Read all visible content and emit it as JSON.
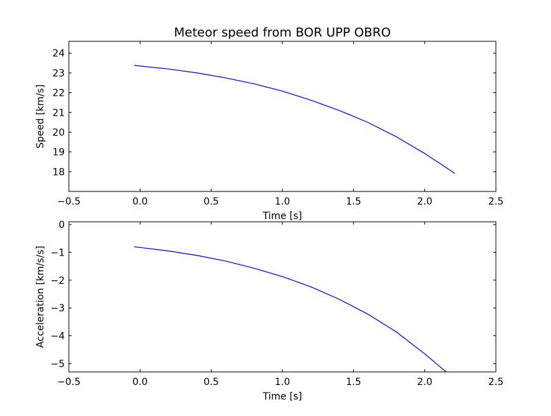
{
  "title": "Meteor speed from  BOR UPP OBRO",
  "chart_data": [
    {
      "type": "line",
      "title": "Meteor speed from  BOR UPP OBRO",
      "xlabel": "Time [s]",
      "ylabel": "Speed [km/s]",
      "xlim": [
        -0.5,
        2.5
      ],
      "ylim": [
        17.0,
        24.6
      ],
      "xticks": [
        -0.5,
        0.0,
        0.5,
        1.0,
        1.5,
        2.0,
        2.5
      ],
      "xtick_labels": [
        "−0.5",
        "0.0",
        "0.5",
        "1.0",
        "1.5",
        "2.0",
        "2.5"
      ],
      "yticks": [
        18,
        19,
        20,
        21,
        22,
        23,
        24
      ],
      "ytick_labels": [
        "18",
        "19",
        "20",
        "21",
        "22",
        "23",
        "24"
      ],
      "grid": false,
      "series": [
        {
          "color": "#0000ff",
          "x": [
            -0.04,
            0.2,
            0.4,
            0.6,
            0.8,
            1.0,
            1.2,
            1.4,
            1.6,
            1.8,
            2.0,
            2.1,
            2.21
          ],
          "y": [
            23.38,
            23.2,
            23.0,
            22.75,
            22.45,
            22.08,
            21.62,
            21.1,
            20.5,
            19.77,
            18.92,
            18.45,
            17.92
          ]
        }
      ]
    },
    {
      "type": "line",
      "xlabel": "Time [s]",
      "ylabel": "Acceleration [km/s/s]",
      "xlim": [
        -0.5,
        2.5
      ],
      "ylim": [
        -5.3,
        0.1
      ],
      "xticks": [
        -0.5,
        0.0,
        0.5,
        1.0,
        1.5,
        2.0,
        2.5
      ],
      "xtick_labels": [
        "−0.5",
        "0.0",
        "0.5",
        "1.0",
        "1.5",
        "2.0",
        "2.5"
      ],
      "yticks": [
        0,
        -1,
        -2,
        -3,
        -4,
        -5
      ],
      "ytick_labels": [
        "0",
        "−1",
        "−2",
        "−3",
        "−4",
        "−5"
      ],
      "grid": false,
      "series": [
        {
          "color": "#0000ff",
          "x": [
            -0.04,
            0.2,
            0.4,
            0.6,
            0.8,
            1.0,
            1.2,
            1.4,
            1.6,
            1.8,
            2.0,
            2.15
          ],
          "y": [
            -0.8,
            -0.95,
            -1.11,
            -1.31,
            -1.57,
            -1.87,
            -2.24,
            -2.69,
            -3.22,
            -3.86,
            -4.65,
            -5.3
          ]
        }
      ]
    }
  ]
}
